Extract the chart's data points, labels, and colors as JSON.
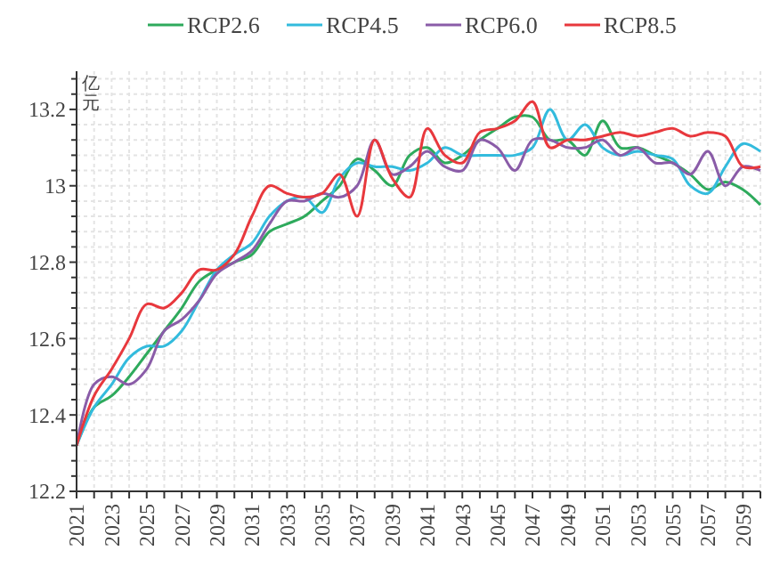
{
  "chart_data": {
    "type": "line",
    "ylabel": "亿元",
    "x": [
      2021,
      2022,
      2023,
      2024,
      2025,
      2026,
      2027,
      2028,
      2029,
      2030,
      2031,
      2032,
      2033,
      2034,
      2035,
      2036,
      2037,
      2038,
      2039,
      2040,
      2041,
      2042,
      2043,
      2044,
      2045,
      2046,
      2047,
      2048,
      2049,
      2050,
      2051,
      2052,
      2053,
      2054,
      2055,
      2056,
      2057,
      2058,
      2059,
      2060
    ],
    "xlim": [
      2021,
      2060
    ],
    "xticks": [
      2021,
      {
        "value": 2022,
        "label": null
      },
      2023,
      {
        "value": 2024,
        "label": null
      },
      2025,
      {
        "value": 2026,
        "label": null
      },
      2027,
      {
        "value": 2028,
        "label": null
      },
      2029,
      {
        "value": 2030,
        "label": null
      },
      2031,
      {
        "value": 2032,
        "label": null
      },
      2033,
      {
        "value": 2034,
        "label": null
      },
      2035,
      {
        "value": 2036,
        "label": null
      },
      2037,
      {
        "value": 2038,
        "label": null
      },
      2039,
      {
        "value": 2040,
        "label": null
      },
      2041,
      {
        "value": 2042,
        "label": null
      },
      2043,
      {
        "value": 2044,
        "label": null
      },
      2045,
      {
        "value": 2046,
        "label": null
      },
      2047,
      {
        "value": 2048,
        "label": null
      },
      2049,
      {
        "value": 2050,
        "label": null
      },
      2051,
      {
        "value": 2052,
        "label": null
      },
      2053,
      {
        "value": 2054,
        "label": null
      },
      2055,
      {
        "value": 2056,
        "label": null
      },
      2057,
      {
        "value": 2058,
        "label": null
      },
      2059,
      {
        "value": 2060,
        "label": null
      }
    ],
    "ylim": [
      12.2,
      13.3
    ],
    "yticks": [
      {
        "value": 12.2,
        "label": "12.2"
      },
      {
        "value": 12.24,
        "label": null
      },
      {
        "value": 12.28,
        "label": null
      },
      {
        "value": 12.32,
        "label": null
      },
      {
        "value": 12.36,
        "label": null
      },
      {
        "value": 12.4,
        "label": "12.4"
      },
      {
        "value": 12.44,
        "label": null
      },
      {
        "value": 12.48,
        "label": null
      },
      {
        "value": 12.52,
        "label": null
      },
      {
        "value": 12.56,
        "label": null
      },
      {
        "value": 12.6,
        "label": "12.6"
      },
      {
        "value": 12.64,
        "label": null
      },
      {
        "value": 12.68,
        "label": null
      },
      {
        "value": 12.72,
        "label": null
      },
      {
        "value": 12.76,
        "label": null
      },
      {
        "value": 12.8,
        "label": "12.8"
      },
      {
        "value": 12.84,
        "label": null
      },
      {
        "value": 12.88,
        "label": null
      },
      {
        "value": 12.92,
        "label": null
      },
      {
        "value": 12.96,
        "label": null
      },
      13,
      {
        "value": 13.04,
        "label": null
      },
      {
        "value": 13.08,
        "label": null
      },
      {
        "value": 13.12,
        "label": null
      },
      {
        "value": 13.16,
        "label": null
      },
      {
        "value": 13.2,
        "label": "13.2"
      },
      {
        "value": 13.24,
        "label": null
      },
      {
        "value": 13.28,
        "label": null
      }
    ],
    "grid": true,
    "legend": "top",
    "line_style": "solid",
    "marker": "none",
    "series": [
      {
        "name": "RCP2.6",
        "color": "#2eaa5c",
        "values": [
          12.32,
          12.42,
          12.45,
          12.5,
          12.56,
          12.62,
          12.68,
          12.75,
          12.78,
          12.8,
          12.82,
          12.88,
          12.9,
          12.92,
          12.96,
          13.0,
          13.07,
          13.04,
          13.0,
          13.08,
          13.1,
          13.06,
          13.08,
          13.12,
          13.15,
          13.18,
          13.18,
          13.12,
          13.12,
          13.08,
          13.17,
          13.1,
          13.1,
          13.08,
          13.06,
          13.03,
          12.99,
          13.01,
          12.99,
          12.95
        ]
      },
      {
        "name": "RCP4.5",
        "color": "#33bbdd",
        "values": [
          12.32,
          12.42,
          12.48,
          12.55,
          12.58,
          12.58,
          12.62,
          12.7,
          12.78,
          12.82,
          12.85,
          12.92,
          12.96,
          12.97,
          12.93,
          13.02,
          13.06,
          13.05,
          13.05,
          13.04,
          13.06,
          13.1,
          13.08,
          13.08,
          13.08,
          13.08,
          13.1,
          13.2,
          13.12,
          13.16,
          13.1,
          13.08,
          13.09,
          13.08,
          13.07,
          13.0,
          12.98,
          13.05,
          13.11,
          13.09
        ]
      },
      {
        "name": "RCP6.0",
        "color": "#8a5ca8",
        "values": [
          12.32,
          12.48,
          12.5,
          12.48,
          12.52,
          12.62,
          12.65,
          12.7,
          12.77,
          12.8,
          12.83,
          12.9,
          12.96,
          12.96,
          12.98,
          12.97,
          13.0,
          13.12,
          13.03,
          13.05,
          13.09,
          13.05,
          13.04,
          13.12,
          13.1,
          13.04,
          13.12,
          13.12,
          13.1,
          13.1,
          13.12,
          13.08,
          13.1,
          13.06,
          13.06,
          13.03,
          13.09,
          13.0,
          13.05,
          13.04
        ]
      },
      {
        "name": "RCP8.5",
        "color": "#e8383d",
        "values": [
          12.32,
          12.45,
          12.52,
          12.6,
          12.69,
          12.68,
          12.72,
          12.78,
          12.78,
          12.82,
          12.92,
          13.0,
          12.98,
          12.97,
          12.98,
          13.03,
          12.92,
          13.12,
          13.02,
          12.97,
          13.15,
          13.08,
          13.06,
          13.14,
          13.15,
          13.17,
          13.22,
          13.1,
          13.12,
          13.12,
          13.13,
          13.14,
          13.13,
          13.14,
          13.15,
          13.13,
          13.14,
          13.13,
          13.05,
          13.05
        ]
      }
    ]
  }
}
